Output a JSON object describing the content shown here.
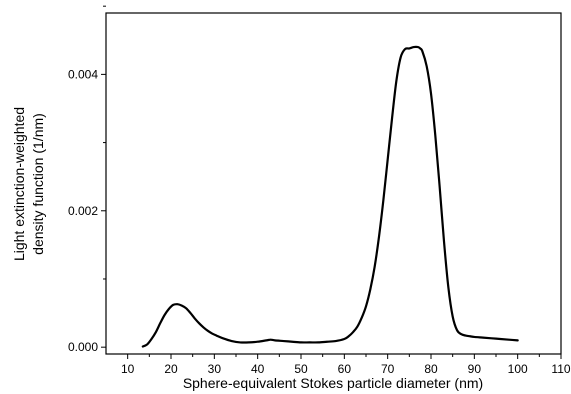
{
  "chart_data": {
    "type": "line",
    "xlabel": "Sphere-equivalent Stokes particle diameter (nm)",
    "ylabel_lines": [
      "Light extinction-weighted",
      "density function (1/nm)"
    ],
    "xlim": [
      5,
      110
    ],
    "ylim": [
      -0.0001,
      0.0049
    ],
    "x_ticks": [
      10,
      20,
      30,
      40,
      50,
      60,
      70,
      80,
      90,
      100,
      110
    ],
    "x_tick_labels": [
      "10",
      "20",
      "30",
      "40",
      "50",
      "60",
      "70",
      "80",
      "90",
      "100",
      "110"
    ],
    "y_ticks": [
      0,
      0.002,
      0.004
    ],
    "y_tick_labels": [
      "0.000",
      "0.002",
      "0.004"
    ],
    "grid": false,
    "legend": "none",
    "colors": {
      "line": "#000000"
    },
    "series": [
      {
        "x": [
          13.5,
          14.5,
          15.5,
          16.5,
          17.5,
          18.5,
          19.5,
          20.5,
          21.5,
          22.5,
          23.5,
          24.5,
          25.5,
          26.5,
          27.5,
          28.5,
          29.5,
          30.5,
          32,
          34,
          36,
          38,
          40,
          42,
          43,
          44,
          46,
          48,
          50,
          52,
          54,
          56,
          58,
          60,
          61,
          62,
          63,
          64,
          65,
          66,
          67,
          68,
          69,
          70,
          71,
          72,
          73,
          74,
          75,
          76,
          77,
          77.5,
          78,
          79,
          80,
          81,
          82,
          83,
          84,
          85,
          86,
          87,
          88,
          89,
          90,
          92,
          94,
          96,
          98,
          100
        ],
        "y": [
          1e-05,
          4e-05,
          0.00012,
          0.00022,
          0.00035,
          0.00047,
          0.00056,
          0.00062,
          0.00063,
          0.00061,
          0.00057,
          0.0005,
          0.00042,
          0.00035,
          0.00029,
          0.00024,
          0.0002,
          0.00017,
          0.00013,
          9e-05,
          7e-05,
          7e-05,
          8e-05,
          0.0001,
          0.00011,
          0.0001,
          9e-05,
          8e-05,
          7e-05,
          7e-05,
          7e-05,
          8e-05,
          9e-05,
          0.00012,
          0.00016,
          0.00022,
          0.0003,
          0.00043,
          0.0006,
          0.00085,
          0.00118,
          0.00162,
          0.00215,
          0.00275,
          0.00335,
          0.0039,
          0.00425,
          0.00437,
          0.00438,
          0.0044,
          0.0044,
          0.00438,
          0.00434,
          0.00412,
          0.00372,
          0.0031,
          0.00235,
          0.00155,
          0.00088,
          0.00045,
          0.00025,
          0.00019,
          0.00017,
          0.00016,
          0.00015,
          0.00014,
          0.00013,
          0.00012,
          0.00011,
          0.0001
        ]
      }
    ]
  }
}
